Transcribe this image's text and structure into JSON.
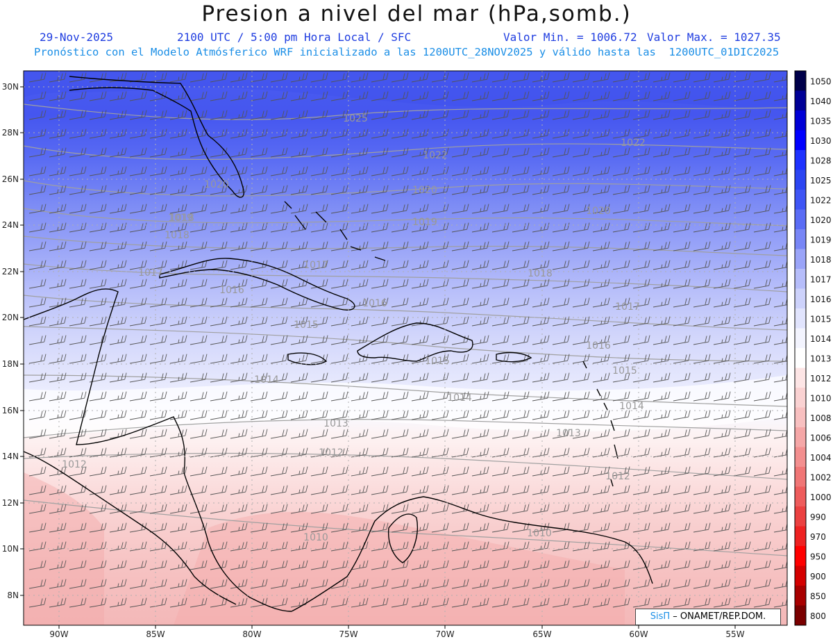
{
  "title": "Presion a nivel del mar (hPa,somb.)",
  "header": {
    "date": "29-Nov-2025",
    "time": "2100 UTC / 5:00 pm Hora Local / SFC",
    "min": "Valor Min. = 1006.72",
    "max": "Valor Max. = 1027.35",
    "subtitle": "Pronóstico con el Modelo Atmósferico WRF inicializado a las 1200UTC_28NOV2025 y válido hasta las  1200UTC_01DIC2025"
  },
  "axes": {
    "lat_labels": [
      "30N",
      "28N",
      "26N",
      "24N",
      "22N",
      "20N",
      "18N",
      "16N",
      "14N",
      "12N",
      "10N",
      "8N"
    ],
    "lon_labels": [
      "90W",
      "85W",
      "80W",
      "75W",
      "70W",
      "65W",
      "60W",
      "55W"
    ]
  },
  "colorbar": {
    "labels": [
      "1050",
      "1040",
      "1035",
      "1030",
      "1028",
      "1025",
      "1022",
      "1020",
      "1019",
      "1018",
      "1017",
      "1016",
      "1015",
      "1014",
      "1013",
      "1012",
      "1010",
      "1008",
      "1006",
      "1004",
      "1002",
      "1000",
      "990",
      "970",
      "950",
      "900",
      "850",
      "800"
    ],
    "colors": [
      "#00004a",
      "#000096",
      "#0000d6",
      "#0000ff",
      "#1e32ff",
      "#2b45f2",
      "#3f55f5",
      "#5a6cf5",
      "#7886f6",
      "#9aa4f8",
      "#b6bdfa",
      "#cdd2fb",
      "#e1e4fd",
      "#f3f4fe",
      "#ffffff",
      "#fde5e5",
      "#fad2d2",
      "#f8c0c0",
      "#f5a7a7",
      "#f38f8f",
      "#f07676",
      "#ee5c5c",
      "#eb4141",
      "#ee2222",
      "#ff0000",
      "#d40000",
      "#a80000",
      "#7a0000"
    ]
  },
  "isobar_labels": [
    "1025",
    "1022",
    "1022",
    "1020",
    "1020",
    "1020",
    "1019",
    "1019",
    "1018",
    "1018",
    "1017",
    "1017",
    "1017",
    "1016",
    "1016",
    "1016",
    "1015",
    "1015",
    "1015",
    "1014",
    "1014",
    "1014",
    "1013",
    "1013",
    "1012",
    "1012",
    "1012",
    "1010",
    "1010",
    "1018",
    "1019"
  ],
  "credit": {
    "logo": "SisΠ",
    "text": "– ONAMET/REP.DOM."
  }
}
